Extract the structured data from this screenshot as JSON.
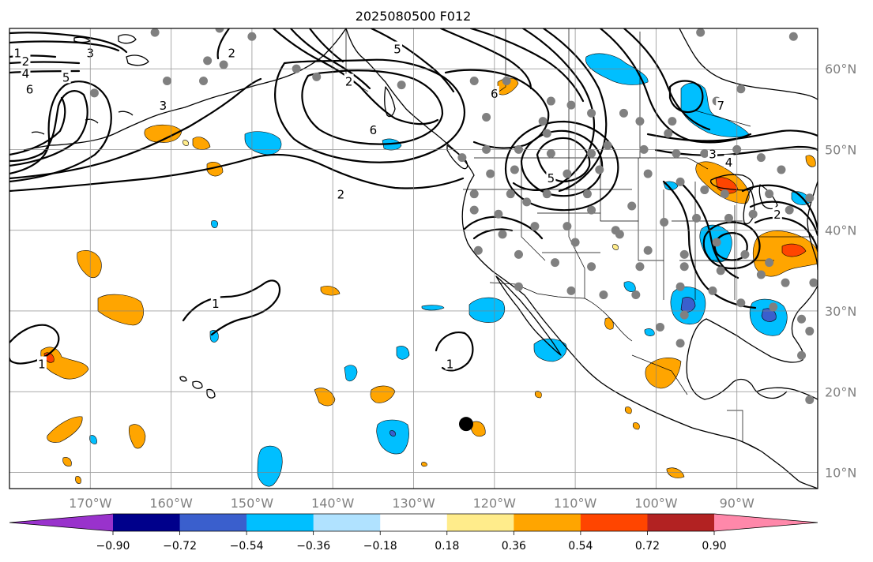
{
  "title": "2025080500 F012",
  "map": {
    "lon_range": [
      -180,
      -80
    ],
    "lat_range": [
      8,
      65
    ],
    "gridlines": true,
    "lon_ticks": [
      {
        "value": -170,
        "label": "170°W"
      },
      {
        "value": -160,
        "label": "160°W"
      },
      {
        "value": -150,
        "label": "150°W"
      },
      {
        "value": -140,
        "label": "140°W"
      },
      {
        "value": -130,
        "label": "130°W"
      },
      {
        "value": -120,
        "label": "120°W"
      },
      {
        "value": -110,
        "label": "110°W"
      },
      {
        "value": -100,
        "label": "100°W"
      },
      {
        "value": -90,
        "label": "90°W"
      }
    ],
    "lat_ticks": [
      {
        "value": 10,
        "label": "10°N"
      },
      {
        "value": 20,
        "label": "20°N"
      },
      {
        "value": 30,
        "label": "30°N"
      },
      {
        "value": 40,
        "label": "40°N"
      },
      {
        "value": 50,
        "label": "50°N"
      },
      {
        "value": 60,
        "label": "60°N"
      }
    ]
  },
  "colorbar": {
    "ticks": [
      "−0.90",
      "−0.72",
      "−0.54",
      "−0.36",
      "−0.18",
      "0.18",
      "0.36",
      "0.54",
      "0.72",
      "0.90"
    ],
    "colors": [
      "#9932cc",
      "#00008b",
      "#3a5fcd",
      "#00bfff",
      "#b0e2ff",
      "#ffffff",
      "#ffec8b",
      "#ffa500",
      "#ff4500",
      "#b22222",
      "#ff88aa"
    ],
    "extend": "both"
  },
  "contour_labels": [
    {
      "text": "1",
      "lon": -179,
      "lat": 62
    },
    {
      "text": "2",
      "lon": -178,
      "lat": 61
    },
    {
      "text": "3",
      "lon": -170,
      "lat": 62
    },
    {
      "text": "4",
      "lon": -178,
      "lat": 59.5
    },
    {
      "text": "5",
      "lon": -173,
      "lat": 59
    },
    {
      "text": "6",
      "lon": -177.5,
      "lat": 57.5
    },
    {
      "text": "3",
      "lon": -161,
      "lat": 55.5
    },
    {
      "text": "2",
      "lon": -152.5,
      "lat": 62
    },
    {
      "text": "5",
      "lon": -132,
      "lat": 62.5
    },
    {
      "text": "2",
      "lon": -138,
      "lat": 58.5
    },
    {
      "text": "6",
      "lon": -120,
      "lat": 57
    },
    {
      "text": "6",
      "lon": -135,
      "lat": 52.5
    },
    {
      "text": "7",
      "lon": -92,
      "lat": 55.5
    },
    {
      "text": "3",
      "lon": -93,
      "lat": 49.5
    },
    {
      "text": "4",
      "lon": -91,
      "lat": 48.5
    },
    {
      "text": "5",
      "lon": -113,
      "lat": 46.5
    },
    {
      "text": "2",
      "lon": -139,
      "lat": 44.5
    },
    {
      "text": "2",
      "lon": -85,
      "lat": 42
    },
    {
      "text": "1",
      "lon": -154.5,
      "lat": 31
    },
    {
      "text": "1",
      "lon": -176,
      "lat": 23.5
    },
    {
      "text": "1",
      "lon": -125.5,
      "lat": 23.5
    }
  ],
  "station_markers": [
    {
      "lon": -162,
      "lat": 64.5
    },
    {
      "lon": -155.5,
      "lat": 61
    },
    {
      "lon": -154,
      "lat": 65
    },
    {
      "lon": -150,
      "lat": 64
    },
    {
      "lon": -169.5,
      "lat": 57
    },
    {
      "lon": -160.5,
      "lat": 58.5
    },
    {
      "lon": -156,
      "lat": 58.5
    },
    {
      "lon": -153.5,
      "lat": 60.5
    },
    {
      "lon": -144.5,
      "lat": 60
    },
    {
      "lon": -142,
      "lat": 59
    },
    {
      "lon": -131.5,
      "lat": 58
    },
    {
      "lon": -122.5,
      "lat": 58.5
    },
    {
      "lon": -118.5,
      "lat": 58.5
    },
    {
      "lon": -121,
      "lat": 54
    },
    {
      "lon": -113,
      "lat": 56
    },
    {
      "lon": -114,
      "lat": 53.5
    },
    {
      "lon": -113.5,
      "lat": 52
    },
    {
      "lon": -110.5,
      "lat": 55.5
    },
    {
      "lon": -108,
      "lat": 54.5
    },
    {
      "lon": -104,
      "lat": 54.5
    },
    {
      "lon": -102,
      "lat": 53.5
    },
    {
      "lon": -98,
      "lat": 53.5
    },
    {
      "lon": -92.5,
      "lat": 56
    },
    {
      "lon": -89.5,
      "lat": 57.5
    },
    {
      "lon": -94.5,
      "lat": 64.5
    },
    {
      "lon": -83,
      "lat": 64
    },
    {
      "lon": -98.5,
      "lat": 52
    },
    {
      "lon": -106,
      "lat": 50.5
    },
    {
      "lon": -108,
      "lat": 49.5
    },
    {
      "lon": -113,
      "lat": 49.5
    },
    {
      "lon": -117,
      "lat": 50
    },
    {
      "lon": -121,
      "lat": 50
    },
    {
      "lon": -124,
      "lat": 49
    },
    {
      "lon": -117.5,
      "lat": 47.5
    },
    {
      "lon": -120.5,
      "lat": 47
    },
    {
      "lon": -111,
      "lat": 47
    },
    {
      "lon": -107,
      "lat": 47.5
    },
    {
      "lon": -101.5,
      "lat": 50
    },
    {
      "lon": -97.5,
      "lat": 49.5
    },
    {
      "lon": -94,
      "lat": 49.5
    },
    {
      "lon": -90,
      "lat": 50
    },
    {
      "lon": -87,
      "lat": 49
    },
    {
      "lon": -84.5,
      "lat": 47.5
    },
    {
      "lon": -101,
      "lat": 47
    },
    {
      "lon": -97,
      "lat": 46
    },
    {
      "lon": -103,
      "lat": 43
    },
    {
      "lon": -108.5,
      "lat": 44.5
    },
    {
      "lon": -113.5,
      "lat": 44.5
    },
    {
      "lon": -116,
      "lat": 43.5
    },
    {
      "lon": -118,
      "lat": 44.5
    },
    {
      "lon": -122.5,
      "lat": 44.5
    },
    {
      "lon": -122.5,
      "lat": 42.5
    },
    {
      "lon": -119.5,
      "lat": 42
    },
    {
      "lon": -108,
      "lat": 42.5
    },
    {
      "lon": -94,
      "lat": 45
    },
    {
      "lon": -91.5,
      "lat": 44.5
    },
    {
      "lon": -86,
      "lat": 44.5
    },
    {
      "lon": -81,
      "lat": 44
    },
    {
      "lon": -83.5,
      "lat": 42.5
    },
    {
      "lon": -88,
      "lat": 42
    },
    {
      "lon": -91,
      "lat": 41.5
    },
    {
      "lon": -95,
      "lat": 41.5
    },
    {
      "lon": -99,
      "lat": 41
    },
    {
      "lon": -105,
      "lat": 40
    },
    {
      "lon": -111,
      "lat": 40.5
    },
    {
      "lon": -115,
      "lat": 40.5
    },
    {
      "lon": -119,
      "lat": 39.5
    },
    {
      "lon": -122,
      "lat": 37.5
    },
    {
      "lon": -117,
      "lat": 37
    },
    {
      "lon": -110,
      "lat": 38.5
    },
    {
      "lon": -104.5,
      "lat": 39.5
    },
    {
      "lon": -101,
      "lat": 37.5
    },
    {
      "lon": -96.5,
      "lat": 37
    },
    {
      "lon": -92.5,
      "lat": 38.5
    },
    {
      "lon": -89,
      "lat": 37
    },
    {
      "lon": -86,
      "lat": 36
    },
    {
      "lon": -112.5,
      "lat": 36
    },
    {
      "lon": -108,
      "lat": 35.5
    },
    {
      "lon": -102,
      "lat": 35.5
    },
    {
      "lon": -96.5,
      "lat": 35.5
    },
    {
      "lon": -92,
      "lat": 35
    },
    {
      "lon": -87,
      "lat": 34.5
    },
    {
      "lon": -84,
      "lat": 33.5
    },
    {
      "lon": -80.5,
      "lat": 33.5
    },
    {
      "lon": -117,
      "lat": 33
    },
    {
      "lon": -110.5,
      "lat": 32.5
    },
    {
      "lon": -106.5,
      "lat": 32
    },
    {
      "lon": -102.5,
      "lat": 32
    },
    {
      "lon": -97,
      "lat": 33
    },
    {
      "lon": -93,
      "lat": 32.5
    },
    {
      "lon": -89.5,
      "lat": 31
    },
    {
      "lon": -85.5,
      "lat": 30.5
    },
    {
      "lon": -82,
      "lat": 29
    },
    {
      "lon": -81,
      "lat": 27.5
    },
    {
      "lon": -96.5,
      "lat": 29.5
    },
    {
      "lon": -99.5,
      "lat": 28
    },
    {
      "lon": -97,
      "lat": 26
    },
    {
      "lon": -82,
      "lat": 24.5
    },
    {
      "lon": -81,
      "lat": 19
    }
  ],
  "big_marker": {
    "lon": -123.5,
    "lat": 16
  }
}
